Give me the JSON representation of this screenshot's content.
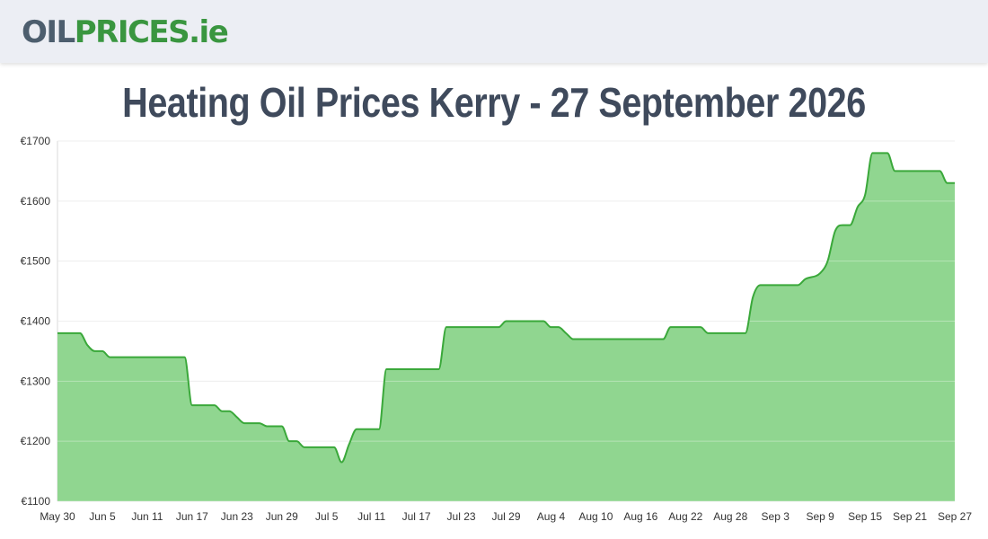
{
  "header": {
    "logo_part1": "OIL",
    "logo_part2": "PRICES.ie"
  },
  "page_title": "Heating Oil Prices Kerry - 27 September 2026",
  "colors": {
    "line": "#3aa83a",
    "area": "#90d690",
    "grid": "#e6e6e6",
    "header_bg": "#eceef4",
    "logo_oil": "#4d5e6e",
    "logo_prices": "#3a9640",
    "title": "#3f4a5c"
  },
  "chart_data": {
    "type": "area",
    "title": "",
    "xlabel": "",
    "ylabel": "",
    "ylim": [
      1100,
      1700
    ],
    "y_ticks": [
      1100,
      1200,
      1300,
      1400,
      1500,
      1600,
      1700
    ],
    "y_tick_prefix": "€",
    "grid": true,
    "x_start": "2026-05-30",
    "x_end": "2026-09-27",
    "x_ticks": [
      {
        "date": "2026-05-30",
        "label": "May 30"
      },
      {
        "date": "2026-06-05",
        "label": "Jun 5"
      },
      {
        "date": "2026-06-11",
        "label": "Jun 11"
      },
      {
        "date": "2026-06-17",
        "label": "Jun 17"
      },
      {
        "date": "2026-06-23",
        "label": "Jun 23"
      },
      {
        "date": "2026-06-29",
        "label": "Jun 29"
      },
      {
        "date": "2026-07-05",
        "label": "Jul 5"
      },
      {
        "date": "2026-07-11",
        "label": "Jul 11"
      },
      {
        "date": "2026-07-17",
        "label": "Jul 17"
      },
      {
        "date": "2026-07-23",
        "label": "Jul 23"
      },
      {
        "date": "2026-07-29",
        "label": "Jul 29"
      },
      {
        "date": "2026-08-04",
        "label": "Aug 4"
      },
      {
        "date": "2026-08-10",
        "label": "Aug 10"
      },
      {
        "date": "2026-08-16",
        "label": "Aug 16"
      },
      {
        "date": "2026-08-22",
        "label": "Aug 22"
      },
      {
        "date": "2026-08-28",
        "label": "Aug 28"
      },
      {
        "date": "2026-09-03",
        "label": "Sep 3"
      },
      {
        "date": "2026-09-09",
        "label": "Sep 9"
      },
      {
        "date": "2026-09-15",
        "label": "Sep 15"
      },
      {
        "date": "2026-09-21",
        "label": "Sep 21"
      },
      {
        "date": "2026-09-27",
        "label": "Sep 27"
      }
    ],
    "series": [
      {
        "points": [
          [
            "2026-05-30",
            1380
          ],
          [
            "2026-06-01",
            1380
          ],
          [
            "2026-06-02",
            1380
          ],
          [
            "2026-06-03",
            1360
          ],
          [
            "2026-06-04",
            1350
          ],
          [
            "2026-06-05",
            1350
          ],
          [
            "2026-06-06",
            1340
          ],
          [
            "2026-06-08",
            1340
          ],
          [
            "2026-06-10",
            1340
          ],
          [
            "2026-06-12",
            1340
          ],
          [
            "2026-06-14",
            1340
          ],
          [
            "2026-06-15",
            1340
          ],
          [
            "2026-06-16",
            1340
          ],
          [
            "2026-06-17",
            1260
          ],
          [
            "2026-06-18",
            1260
          ],
          [
            "2026-06-19",
            1260
          ],
          [
            "2026-06-20",
            1260
          ],
          [
            "2026-06-21",
            1250
          ],
          [
            "2026-06-22",
            1250
          ],
          [
            "2026-06-23",
            1240
          ],
          [
            "2026-06-24",
            1230
          ],
          [
            "2026-06-25",
            1230
          ],
          [
            "2026-06-26",
            1230
          ],
          [
            "2026-06-27",
            1225
          ],
          [
            "2026-06-28",
            1225
          ],
          [
            "2026-06-29",
            1225
          ],
          [
            "2026-06-30",
            1200
          ],
          [
            "2026-07-01",
            1200
          ],
          [
            "2026-07-02",
            1190
          ],
          [
            "2026-07-03",
            1190
          ],
          [
            "2026-07-04",
            1190
          ],
          [
            "2026-07-05",
            1190
          ],
          [
            "2026-07-06",
            1190
          ],
          [
            "2026-07-07",
            1165
          ],
          [
            "2026-07-08",
            1195
          ],
          [
            "2026-07-09",
            1220
          ],
          [
            "2026-07-10",
            1220
          ],
          [
            "2026-07-11",
            1220
          ],
          [
            "2026-07-12",
            1220
          ],
          [
            "2026-07-13",
            1320
          ],
          [
            "2026-07-14",
            1320
          ],
          [
            "2026-07-16",
            1320
          ],
          [
            "2026-07-18",
            1320
          ],
          [
            "2026-07-19",
            1320
          ],
          [
            "2026-07-20",
            1320
          ],
          [
            "2026-07-21",
            1390
          ],
          [
            "2026-07-22",
            1390
          ],
          [
            "2026-07-24",
            1390
          ],
          [
            "2026-07-26",
            1390
          ],
          [
            "2026-07-27",
            1390
          ],
          [
            "2026-07-28",
            1390
          ],
          [
            "2026-07-29",
            1400
          ],
          [
            "2026-07-31",
            1400
          ],
          [
            "2026-08-02",
            1400
          ],
          [
            "2026-08-03",
            1400
          ],
          [
            "2026-08-04",
            1390
          ],
          [
            "2026-08-05",
            1390
          ],
          [
            "2026-08-06",
            1380
          ],
          [
            "2026-08-07",
            1370
          ],
          [
            "2026-08-09",
            1370
          ],
          [
            "2026-08-11",
            1370
          ],
          [
            "2026-08-13",
            1370
          ],
          [
            "2026-08-15",
            1370
          ],
          [
            "2026-08-17",
            1370
          ],
          [
            "2026-08-18",
            1370
          ],
          [
            "2026-08-19",
            1370
          ],
          [
            "2026-08-20",
            1390
          ],
          [
            "2026-08-21",
            1390
          ],
          [
            "2026-08-23",
            1390
          ],
          [
            "2026-08-24",
            1390
          ],
          [
            "2026-08-25",
            1380
          ],
          [
            "2026-08-27",
            1380
          ],
          [
            "2026-08-29",
            1380
          ],
          [
            "2026-08-30",
            1380
          ],
          [
            "2026-08-31",
            1440
          ],
          [
            "2026-09-01",
            1460
          ],
          [
            "2026-09-03",
            1460
          ],
          [
            "2026-09-05",
            1460
          ],
          [
            "2026-09-06",
            1460
          ],
          [
            "2026-09-07",
            1470
          ],
          [
            "2026-09-09",
            1480
          ],
          [
            "2026-09-10",
            1500
          ],
          [
            "2026-09-11",
            1550
          ],
          [
            "2026-09-12",
            1560
          ],
          [
            "2026-09-13",
            1560
          ],
          [
            "2026-09-14",
            1590
          ],
          [
            "2026-09-15",
            1610
          ],
          [
            "2026-09-16",
            1680
          ],
          [
            "2026-09-17",
            1680
          ],
          [
            "2026-09-18",
            1680
          ],
          [
            "2026-09-19",
            1650
          ],
          [
            "2026-09-20",
            1650
          ],
          [
            "2026-09-22",
            1650
          ],
          [
            "2026-09-24",
            1650
          ],
          [
            "2026-09-25",
            1650
          ],
          [
            "2026-09-26",
            1630
          ],
          [
            "2026-09-27",
            1630
          ]
        ]
      }
    ]
  }
}
